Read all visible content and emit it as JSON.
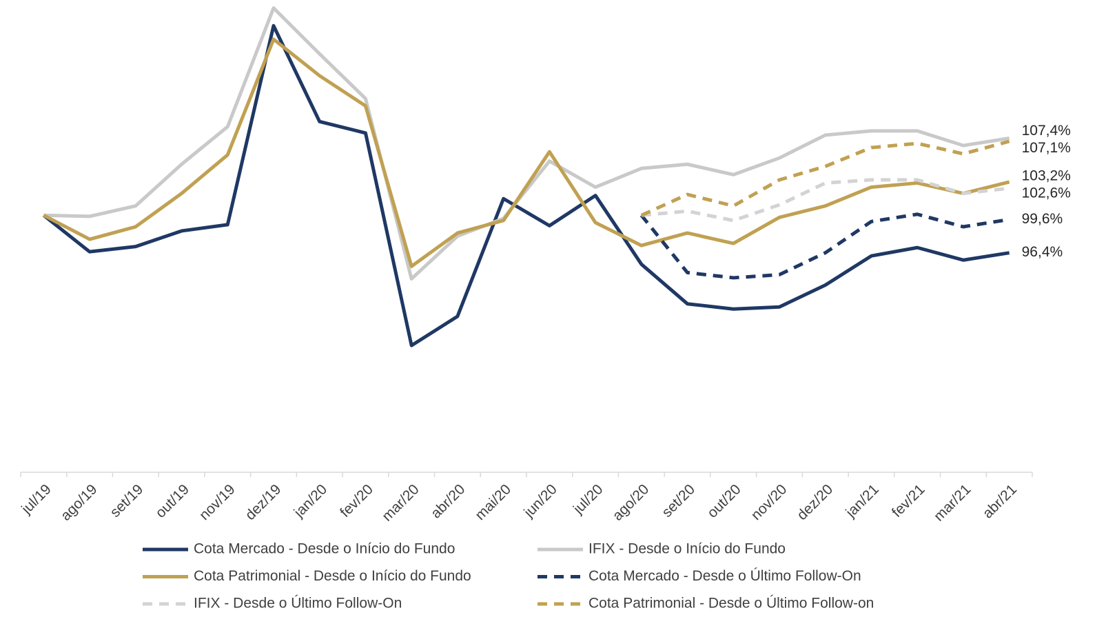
{
  "chart_data": {
    "type": "line",
    "categories": [
      "jul/19",
      "ago/19",
      "set/19",
      "out/19",
      "nov/19",
      "dez/19",
      "jan/20",
      "fev/20",
      "mar/20",
      "abr/20",
      "mai/20",
      "jun/20",
      "jul/20",
      "ago/20",
      "set/20",
      "out/20",
      "nov/20",
      "dez/20",
      "jan/21",
      "fev/21",
      "mar/21",
      "abr/21"
    ],
    "ylim": [
      75,
      121
    ],
    "series": [
      {
        "name": "Cota Mercado - Desde o Início do Fundo",
        "color": "#1f3864",
        "dashed": false,
        "values": [
          100,
          96.5,
          97.0,
          98.5,
          99.1,
          118.2,
          109.0,
          107.9,
          87.5,
          90.3,
          101.6,
          99.0,
          101.9,
          95.3,
          91.5,
          91.0,
          91.2,
          93.3,
          96.1,
          96.9,
          95.7,
          96.4
        ],
        "value_labels": [
          null,
          null,
          null,
          null,
          null,
          null,
          null,
          null,
          null,
          null,
          null,
          null,
          null,
          null,
          null,
          null,
          null,
          null,
          null,
          null,
          null,
          "96,4%"
        ]
      },
      {
        "name": "IFIX - Desde o Início do Fundo",
        "color": "#c9c9c9",
        "dashed": false,
        "values": [
          100,
          99.9,
          100.9,
          104.9,
          108.5,
          119.9,
          115.5,
          111.2,
          93.9,
          98.0,
          99.7,
          105.2,
          102.7,
          104.5,
          104.9,
          103.9,
          105.5,
          107.7,
          108.1,
          108.1,
          106.7,
          107.4
        ],
        "value_labels": [
          null,
          null,
          null,
          null,
          null,
          null,
          null,
          null,
          null,
          null,
          null,
          null,
          null,
          null,
          null,
          null,
          null,
          null,
          null,
          null,
          null,
          "107,4%"
        ]
      },
      {
        "name": "Cota Patrimonial - Desde o Início do Fundo",
        "color": "#c0a152",
        "dashed": false,
        "values": [
          100,
          97.7,
          98.9,
          102.1,
          105.8,
          116.9,
          113.4,
          110.5,
          95.1,
          98.3,
          99.5,
          106.1,
          99.3,
          97.1,
          98.3,
          97.3,
          99.8,
          100.9,
          102.7,
          103.1,
          102.1,
          103.2
        ],
        "value_labels": [
          null,
          null,
          null,
          null,
          null,
          null,
          null,
          null,
          null,
          null,
          null,
          null,
          null,
          null,
          null,
          null,
          null,
          null,
          null,
          null,
          null,
          "103,2%"
        ]
      },
      {
        "name": "Cota Mercado - Desde o Último Follow-On",
        "color": "#1f3864",
        "dashed": true,
        "values": [
          null,
          null,
          null,
          null,
          null,
          null,
          null,
          null,
          null,
          null,
          null,
          null,
          null,
          100,
          94.5,
          94.0,
          94.3,
          96.4,
          99.4,
          100.1,
          98.9,
          99.6
        ],
        "value_labels": [
          null,
          null,
          null,
          null,
          null,
          null,
          null,
          null,
          null,
          null,
          null,
          null,
          null,
          null,
          null,
          null,
          null,
          null,
          null,
          null,
          null,
          "99,6%"
        ]
      },
      {
        "name": "IFIX - Desde o Último Follow-On",
        "color": "#d3d3d3",
        "dashed": true,
        "values": [
          null,
          null,
          null,
          null,
          null,
          null,
          null,
          null,
          null,
          null,
          null,
          null,
          null,
          100,
          100.4,
          99.5,
          101.0,
          103.1,
          103.4,
          103.4,
          102.1,
          102.6
        ],
        "value_labels": [
          null,
          null,
          null,
          null,
          null,
          null,
          null,
          null,
          null,
          null,
          null,
          null,
          null,
          null,
          null,
          null,
          null,
          null,
          null,
          null,
          null,
          "102,6%"
        ]
      },
      {
        "name": "Cota Patrimonial - Desde o Último Follow-on",
        "color": "#c0a152",
        "dashed": true,
        "values": [
          null,
          null,
          null,
          null,
          null,
          null,
          null,
          null,
          null,
          null,
          null,
          null,
          null,
          100,
          102.0,
          100.9,
          103.4,
          104.7,
          106.5,
          106.9,
          105.9,
          107.1
        ],
        "value_labels": [
          null,
          null,
          null,
          null,
          null,
          null,
          null,
          null,
          null,
          null,
          null,
          null,
          null,
          null,
          null,
          null,
          null,
          null,
          null,
          null,
          null,
          "107,1%"
        ]
      }
    ]
  }
}
